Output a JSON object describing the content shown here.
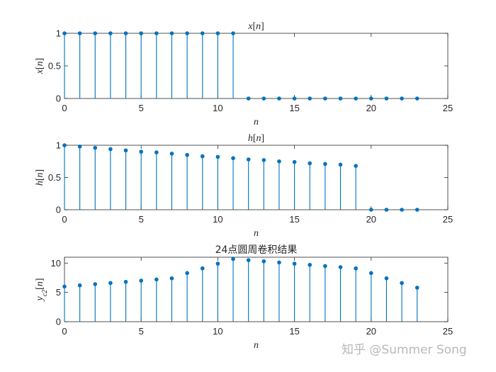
{
  "color": "#0072BD",
  "watermark": "知乎 @Summer Song",
  "chart_data": [
    {
      "type": "stem",
      "title": "x[n]",
      "xlabel": "n",
      "ylabel": "x[n]",
      "xlim": [
        0,
        25
      ],
      "ylim": [
        0,
        1
      ],
      "xticks": [
        "0",
        "5",
        "10",
        "15",
        "20",
        "25"
      ],
      "yticks": [
        "0",
        "0.5",
        "1"
      ],
      "x": [
        0,
        1,
        2,
        3,
        4,
        5,
        6,
        7,
        8,
        9,
        10,
        11,
        12,
        13,
        14,
        15,
        16,
        17,
        18,
        19,
        20,
        21,
        22,
        23
      ],
      "values": [
        1,
        1,
        1,
        1,
        1,
        1,
        1,
        1,
        1,
        1,
        1,
        1,
        0,
        0,
        0,
        0,
        0,
        0,
        0,
        0,
        0,
        0,
        0,
        0
      ]
    },
    {
      "type": "stem",
      "title": "h[n]",
      "xlabel": "n",
      "ylabel": "h[n]",
      "xlim": [
        0,
        25
      ],
      "ylim": [
        0,
        1
      ],
      "xticks": [
        "0",
        "5",
        "10",
        "15",
        "20",
        "25"
      ],
      "yticks": [
        "0",
        "0.5",
        "1"
      ],
      "x": [
        0,
        1,
        2,
        3,
        4,
        5,
        6,
        7,
        8,
        9,
        10,
        11,
        12,
        13,
        14,
        15,
        16,
        17,
        18,
        19,
        20,
        21,
        22,
        23
      ],
      "values": [
        1,
        0.98,
        0.96,
        0.94,
        0.92,
        0.9,
        0.89,
        0.87,
        0.85,
        0.83,
        0.82,
        0.8,
        0.78,
        0.77,
        0.75,
        0.74,
        0.72,
        0.71,
        0.7,
        0.68,
        0,
        0,
        0,
        0
      ]
    },
    {
      "type": "stem",
      "title": "24点圆周卷积结果",
      "xlabel": "n",
      "ylabel": "yc2[n]",
      "xlim": [
        0,
        25
      ],
      "ylim": [
        0,
        11
      ],
      "xticks": [
        "0",
        "5",
        "10",
        "15",
        "20",
        "25"
      ],
      "yticks": [
        "0",
        "5",
        "10"
      ],
      "x": [
        0,
        1,
        2,
        3,
        4,
        5,
        6,
        7,
        8,
        9,
        10,
        11,
        12,
        13,
        14,
        15,
        16,
        17,
        18,
        19,
        20,
        21,
        22,
        23
      ],
      "values": [
        6.0,
        6.2,
        6.4,
        6.6,
        6.8,
        7.0,
        7.2,
        7.4,
        8.3,
        9.1,
        9.9,
        10.7,
        10.5,
        10.3,
        10.1,
        9.9,
        9.7,
        9.5,
        9.3,
        9.1,
        8.3,
        7.4,
        6.6,
        5.8
      ]
    }
  ]
}
